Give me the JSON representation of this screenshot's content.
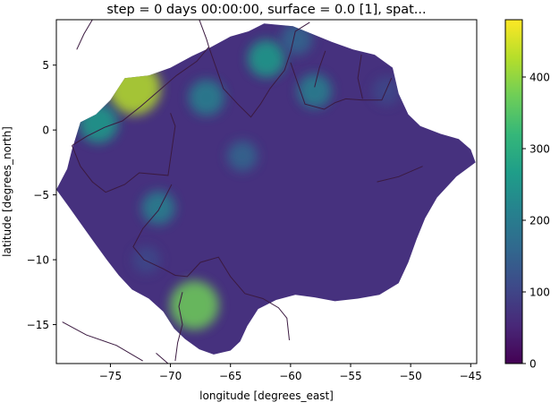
{
  "chart_data": {
    "type": "heatmap",
    "title": "step = 0 days 00:00:00, surface = 0.0 [1], spat...",
    "xlabel": "longitude [degrees_east]",
    "ylabel": "latitude [degrees_north]",
    "xlim": [
      -79.5,
      -44.5
    ],
    "ylim": [
      -18.0,
      8.5
    ],
    "xticks": [
      -75,
      -70,
      -65,
      -60,
      -55,
      -50,
      -45
    ],
    "xtick_labels": [
      "−75",
      "−70",
      "−65",
      "−60",
      "−55",
      "−50",
      "−45"
    ],
    "yticks": [
      5,
      0,
      -5,
      -10,
      -15
    ],
    "ytick_labels": [
      "5",
      "0",
      "−5",
      "−10",
      "−15"
    ],
    "colorbar": {
      "colormap": "viridis",
      "range": [
        0,
        480
      ],
      "ticks": [
        0,
        100,
        200,
        300,
        400
      ],
      "tick_labels": [
        "0",
        "100",
        "200",
        "300",
        "400"
      ]
    },
    "colormap_stops": [
      "#440154",
      "#482878",
      "#3e4989",
      "#31688e",
      "#26828e",
      "#1f9e89",
      "#35b779",
      "#6ece58",
      "#b5de2b",
      "#fde725"
    ],
    "hotspots": [
      {
        "lon": -73.0,
        "lat": 3.2,
        "value": 420
      },
      {
        "lon": -68.0,
        "lat": -13.5,
        "value": 380
      },
      {
        "lon": -76.0,
        "lat": 0.5,
        "value": 260
      },
      {
        "lon": -62.0,
        "lat": 5.5,
        "value": 240
      },
      {
        "lon": -67.0,
        "lat": 2.5,
        "value": 220
      },
      {
        "lon": -58.0,
        "lat": 3.0,
        "value": 200
      },
      {
        "lon": -71.0,
        "lat": -6.0,
        "value": 190
      },
      {
        "lon": -64.0,
        "lat": -2.0,
        "value": 150
      },
      {
        "lon": -59.5,
        "lat": 7.0,
        "value": 170
      },
      {
        "lon": -72.0,
        "lat": -10.0,
        "value": 120
      },
      {
        "lon": -52.0,
        "lat": 3.0,
        "value": 130
      }
    ]
  }
}
